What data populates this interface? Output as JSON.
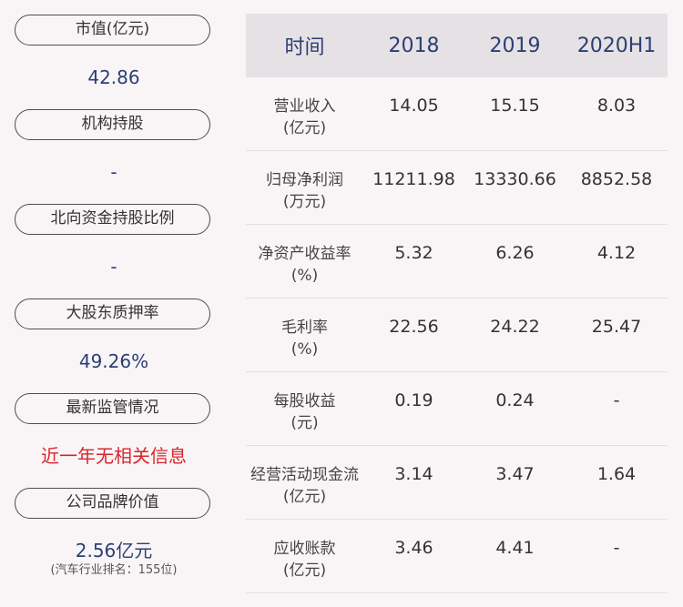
{
  "left": {
    "items": [
      {
        "label": "市值(亿元)",
        "value": "42.86"
      },
      {
        "label": "机构持股",
        "value": "-"
      },
      {
        "label": "北向资金持股比例",
        "value": "-"
      },
      {
        "label": "大股东质押率",
        "value": "49.26%"
      },
      {
        "label": "最新监管情况",
        "value": "近一年无相关信息"
      },
      {
        "label": "公司品牌价值",
        "value": "2.56亿元",
        "note": "(汽车行业排名：155位)"
      }
    ],
    "alert_color": "#d9252b"
  },
  "table": {
    "headers": [
      "时间",
      "2018",
      "2019",
      "2020H1"
    ],
    "rows": [
      {
        "label": "营业收入",
        "unit": "(亿元)",
        "values": [
          "14.05",
          "15.15",
          "8.03"
        ]
      },
      {
        "label": "归母净利润",
        "unit": "(万元)",
        "values": [
          "11211.98",
          "13330.66",
          "8852.58"
        ]
      },
      {
        "label": "净资产收益率",
        "unit": "(%)",
        "values": [
          "5.32",
          "6.26",
          "4.12"
        ]
      },
      {
        "label": "毛利率",
        "unit": "(%)",
        "values": [
          "22.56",
          "24.22",
          "25.47"
        ]
      },
      {
        "label": "每股收益",
        "unit": "(元)",
        "values": [
          "0.19",
          "0.24",
          "-"
        ]
      },
      {
        "label": "经营活动现金流",
        "unit": "(亿元)",
        "values": [
          "3.14",
          "3.47",
          "1.64"
        ]
      },
      {
        "label": "应收账款",
        "unit": "(亿元)",
        "values": [
          "3.46",
          "4.41",
          "-"
        ]
      }
    ]
  }
}
